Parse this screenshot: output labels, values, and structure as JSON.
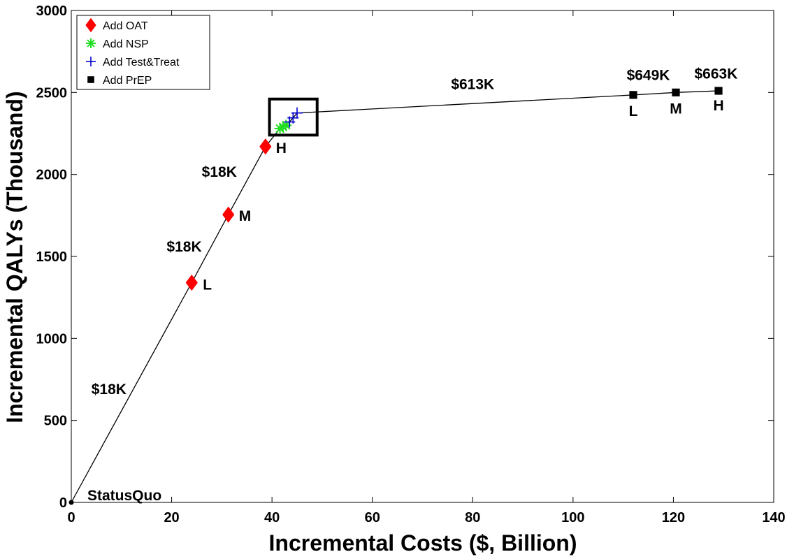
{
  "chart_data": {
    "type": "scatter",
    "xlabel": "Incremental Costs ($, Billion)",
    "ylabel": "Incremental QALYs (Thousand)",
    "xlim": [
      0,
      140
    ],
    "ylim": [
      0,
      3000
    ],
    "x_ticks": [
      "0",
      "20",
      "40",
      "60",
      "80",
      "100",
      "120",
      "140"
    ],
    "y_ticks": [
      "0",
      "500",
      "1000",
      "1500",
      "2000",
      "2500",
      "3000"
    ],
    "grid": false,
    "legend_position": "top-left",
    "frontier_line": [
      [
        0,
        0
      ],
      [
        24,
        1340
      ],
      [
        31.3,
        1755
      ],
      [
        38.7,
        2170
      ],
      [
        41.6,
        2280
      ],
      [
        42.2,
        2290
      ],
      [
        42.8,
        2300
      ],
      [
        43.5,
        2320
      ],
      [
        44.2,
        2345
      ],
      [
        45,
        2375
      ],
      [
        112,
        2485
      ],
      [
        120.5,
        2500
      ],
      [
        129,
        2510
      ]
    ],
    "series": [
      {
        "name": "Add OAT",
        "marker": "diamond",
        "color": "#ff0000",
        "points": [
          [
            24,
            1340
          ],
          [
            31.3,
            1755
          ],
          [
            38.7,
            2170
          ]
        ]
      },
      {
        "name": "Add NSP",
        "marker": "asterisk",
        "color": "#22dd22",
        "points": [
          [
            41.6,
            2280
          ],
          [
            42.2,
            2290
          ],
          [
            42.8,
            2300
          ]
        ]
      },
      {
        "name": "Add Test&Treat",
        "marker": "plus",
        "color": "#0000cc",
        "points": [
          [
            43.5,
            2320
          ],
          [
            44.2,
            2345
          ],
          [
            45,
            2375
          ]
        ]
      },
      {
        "name": "Add PrEP",
        "marker": "square",
        "color": "#000000",
        "points": [
          [
            112,
            2485
          ],
          [
            120.5,
            2500
          ],
          [
            129,
            2510
          ]
        ]
      }
    ],
    "status_quo": {
      "label": "StatusQuo",
      "x": 0,
      "y": 0
    },
    "annotations": [
      {
        "text": "L",
        "x": 24,
        "y": 1340
      },
      {
        "text": "M",
        "x": 31.3,
        "y": 1755
      },
      {
        "text": "H",
        "x": 38.7,
        "y": 2170
      },
      {
        "text": "$18K",
        "x": 7.5,
        "y": 660
      },
      {
        "text": "$18K",
        "x": 22.5,
        "y": 1530
      },
      {
        "text": "$18K",
        "x": 29.5,
        "y": 1985
      },
      {
        "text": "$613K",
        "x": 80,
        "y": 2520
      },
      {
        "text": "L",
        "x": 112,
        "y": 2485
      },
      {
        "text": "M",
        "x": 120.5,
        "y": 2500
      },
      {
        "text": "H",
        "x": 129,
        "y": 2510
      },
      {
        "text": "$649K",
        "x": 115,
        "y": 2575
      },
      {
        "text": "$663K",
        "x": 128.5,
        "y": 2585
      }
    ],
    "highlight_box": {
      "x": [
        39.5,
        49
      ],
      "y": [
        2240,
        2460
      ]
    }
  }
}
